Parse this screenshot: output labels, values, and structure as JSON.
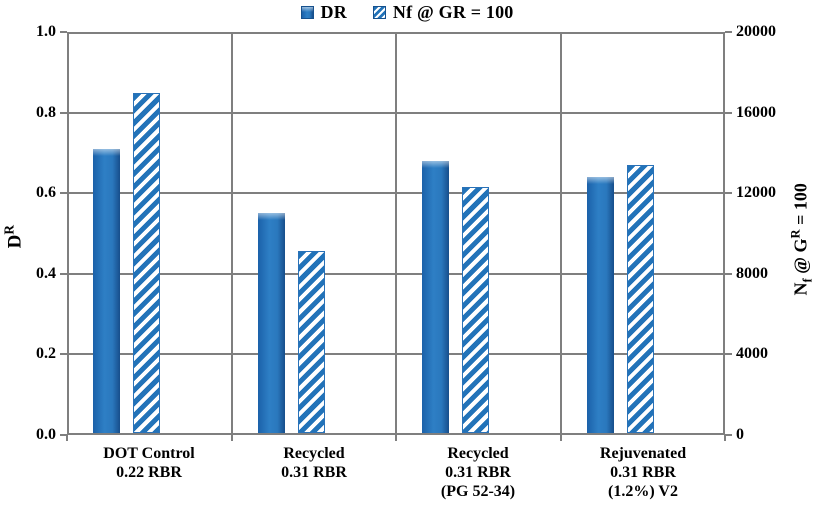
{
  "chart_data": {
    "type": "bar",
    "title": "",
    "categories": [
      [
        "DOT Control",
        "0.22 RBR"
      ],
      [
        "Recycled",
        "0.31 RBR"
      ],
      [
        "Recycled",
        "0.31 RBR",
        "(PG 52-34)"
      ],
      [
        "Rejuvenated",
        "0.31 RBR",
        "(1.2%) V2"
      ]
    ],
    "series": [
      {
        "name": "DR",
        "axis": "left",
        "style": "solid",
        "values": [
          0.71,
          0.55,
          0.68,
          0.64
        ]
      },
      {
        "name": "Nf @ GR = 100",
        "axis": "right",
        "style": "hatched",
        "values": [
          17000,
          9100,
          12300,
          13400
        ]
      }
    ],
    "left_axis": {
      "label": "DR",
      "min": 0,
      "max": 1,
      "ticks": [
        "0.0",
        "0.2",
        "0.4",
        "0.6",
        "0.8",
        "1.0"
      ]
    },
    "right_axis": {
      "label": "Nf @ GR = 100",
      "min": 0,
      "max": 20000,
      "ticks": [
        "0",
        "4000",
        "8000",
        "12000",
        "16000",
        "20000"
      ]
    },
    "legend_position": "top",
    "grid": true
  },
  "legend": {
    "items": [
      {
        "label": "DR"
      },
      {
        "label": "Nf @ GR = 100"
      }
    ]
  },
  "axes": {
    "left_title_parts": {
      "main": "D",
      "sup": "R"
    },
    "right_title_parts": {
      "main": "N",
      "sub": "f",
      "mid": " @ G",
      "sup": "R",
      "end": " = 100"
    }
  },
  "colors": {
    "bar_blue": "#2273b9",
    "bar_blue_dark": "#174e8b",
    "bar_blue_light": "#2e7fc5",
    "grid_gray": "#7f7f7f",
    "text": "#000000"
  }
}
